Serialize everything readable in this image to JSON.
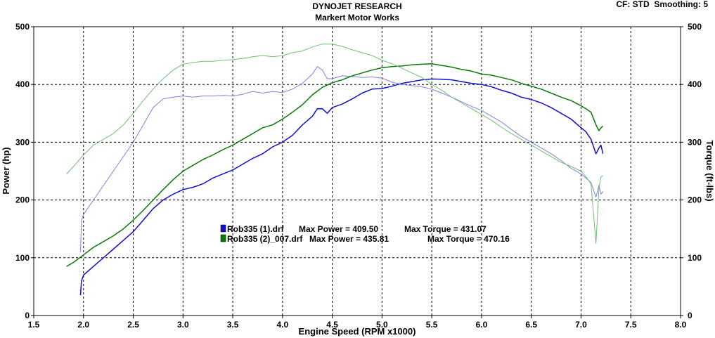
{
  "header": {
    "title": "DYNOJET RESEARCH",
    "subtitle": "Markert Motor Works",
    "settings": "CF: STD  Smoothing: 5"
  },
  "chart_data": {
    "type": "line",
    "title": "DYNOJET RESEARCH",
    "subtitle": "Markert Motor Works",
    "xlabel": "Engine Speed (RPM x1000)",
    "ylabel_left": "Power (hp)",
    "ylabel_right": "Torque (ft-lbs)",
    "xlim": [
      1.5,
      8.0
    ],
    "ylim_left": [
      0,
      500
    ],
    "ylim_right": [
      0,
      500
    ],
    "grid": true,
    "legend_position": "center-left",
    "x_ticks": [
      "1.5",
      "2.0",
      "2.5",
      "3.0",
      "3.5",
      "4.0",
      "4.5",
      "5.0",
      "5.5",
      "6.0",
      "6.5",
      "7.0",
      "7.5",
      "8.0"
    ],
    "y_ticks_left": [
      "0",
      "100",
      "200",
      "300",
      "400",
      "500"
    ],
    "y_ticks_right": [
      "0",
      "100",
      "200",
      "300",
      "400",
      "500"
    ],
    "legend": [
      {
        "file": "Rob335 (1).drf",
        "max_power": "Max Power = 409.50",
        "max_torque": "Max Torque = 431.07",
        "color": "#1010cc"
      },
      {
        "file": "Rob335 (2)_007.drf",
        "max_power": "Max Power = 435.81",
        "max_torque": "Max Torque = 470.16",
        "color": "#0a7a0a"
      }
    ],
    "series": [
      {
        "run": 1,
        "measure": "power",
        "color": "#1010cc",
        "points": [
          [
            1.97,
            35
          ],
          [
            1.98,
            60
          ],
          [
            2.0,
            70
          ],
          [
            2.1,
            85
          ],
          [
            2.2,
            100
          ],
          [
            2.3,
            115
          ],
          [
            2.4,
            130
          ],
          [
            2.5,
            145
          ],
          [
            2.6,
            165
          ],
          [
            2.7,
            185
          ],
          [
            2.8,
            200
          ],
          [
            2.9,
            210
          ],
          [
            3.0,
            218
          ],
          [
            3.1,
            222
          ],
          [
            3.2,
            228
          ],
          [
            3.3,
            238
          ],
          [
            3.4,
            245
          ],
          [
            3.5,
            252
          ],
          [
            3.6,
            262
          ],
          [
            3.7,
            272
          ],
          [
            3.8,
            280
          ],
          [
            3.9,
            292
          ],
          [
            4.0,
            300
          ],
          [
            4.1,
            312
          ],
          [
            4.2,
            330
          ],
          [
            4.3,
            345
          ],
          [
            4.35,
            358
          ],
          [
            4.4,
            358
          ],
          [
            4.45,
            350
          ],
          [
            4.5,
            360
          ],
          [
            4.6,
            366
          ],
          [
            4.7,
            375
          ],
          [
            4.8,
            385
          ],
          [
            4.9,
            392
          ],
          [
            5.0,
            393
          ],
          [
            5.1,
            397
          ],
          [
            5.2,
            402
          ],
          [
            5.3,
            405
          ],
          [
            5.4,
            408
          ],
          [
            5.5,
            409.5
          ],
          [
            5.6,
            409
          ],
          [
            5.7,
            408
          ],
          [
            5.8,
            405
          ],
          [
            5.9,
            402
          ],
          [
            6.0,
            400
          ],
          [
            6.1,
            396
          ],
          [
            6.2,
            390
          ],
          [
            6.3,
            385
          ],
          [
            6.4,
            378
          ],
          [
            6.5,
            374
          ],
          [
            6.6,
            368
          ],
          [
            6.7,
            360
          ],
          [
            6.8,
            350
          ],
          [
            6.9,
            340
          ],
          [
            7.0,
            325
          ],
          [
            7.05,
            318
          ],
          [
            7.1,
            305
          ],
          [
            7.15,
            280
          ],
          [
            7.18,
            290
          ],
          [
            7.2,
            295
          ],
          [
            7.22,
            280
          ]
        ]
      },
      {
        "run": 1,
        "measure": "torque",
        "color": "#8080e0",
        "points": [
          [
            1.97,
            110
          ],
          [
            1.98,
            165
          ],
          [
            2.0,
            175
          ],
          [
            2.1,
            200
          ],
          [
            2.2,
            225
          ],
          [
            2.3,
            250
          ],
          [
            2.4,
            275
          ],
          [
            2.5,
            300
          ],
          [
            2.6,
            330
          ],
          [
            2.7,
            360
          ],
          [
            2.8,
            375
          ],
          [
            2.9,
            378
          ],
          [
            3.0,
            380
          ],
          [
            3.1,
            378
          ],
          [
            3.2,
            380
          ],
          [
            3.3,
            380
          ],
          [
            3.4,
            381
          ],
          [
            3.5,
            380
          ],
          [
            3.6,
            383
          ],
          [
            3.7,
            388
          ],
          [
            3.8,
            385
          ],
          [
            3.9,
            388
          ],
          [
            4.0,
            386
          ],
          [
            4.1,
            392
          ],
          [
            4.2,
            402
          ],
          [
            4.3,
            418
          ],
          [
            4.35,
            431
          ],
          [
            4.4,
            425
          ],
          [
            4.45,
            410
          ],
          [
            4.5,
            410
          ],
          [
            4.6,
            415
          ],
          [
            4.7,
            414
          ],
          [
            4.8,
            412
          ],
          [
            4.9,
            413
          ],
          [
            5.0,
            411
          ],
          [
            5.1,
            404
          ],
          [
            5.2,
            400
          ],
          [
            5.3,
            398
          ],
          [
            5.4,
            396
          ],
          [
            5.5,
            392
          ],
          [
            5.6,
            385
          ],
          [
            5.7,
            378
          ],
          [
            5.8,
            370
          ],
          [
            5.9,
            362
          ],
          [
            6.0,
            355
          ],
          [
            6.1,
            345
          ],
          [
            6.2,
            335
          ],
          [
            6.3,
            322
          ],
          [
            6.4,
            310
          ],
          [
            6.5,
            300
          ],
          [
            6.6,
            290
          ],
          [
            6.7,
            280
          ],
          [
            6.8,
            268
          ],
          [
            6.9,
            255
          ],
          [
            7.0,
            245
          ],
          [
            7.05,
            238
          ],
          [
            7.1,
            230
          ],
          [
            7.15,
            205
          ],
          [
            7.18,
            225
          ],
          [
            7.2,
            210
          ],
          [
            7.22,
            215
          ]
        ]
      },
      {
        "run": 2,
        "measure": "power",
        "color": "#0a7a0a",
        "points": [
          [
            1.83,
            85
          ],
          [
            1.9,
            92
          ],
          [
            2.0,
            105
          ],
          [
            2.1,
            118
          ],
          [
            2.2,
            128
          ],
          [
            2.3,
            138
          ],
          [
            2.4,
            150
          ],
          [
            2.5,
            165
          ],
          [
            2.6,
            182
          ],
          [
            2.7,
            200
          ],
          [
            2.8,
            218
          ],
          [
            2.9,
            235
          ],
          [
            3.0,
            250
          ],
          [
            3.1,
            260
          ],
          [
            3.2,
            270
          ],
          [
            3.3,
            278
          ],
          [
            3.4,
            287
          ],
          [
            3.5,
            295
          ],
          [
            3.6,
            305
          ],
          [
            3.7,
            315
          ],
          [
            3.8,
            325
          ],
          [
            3.9,
            330
          ],
          [
            4.0,
            340
          ],
          [
            4.1,
            352
          ],
          [
            4.2,
            365
          ],
          [
            4.3,
            382
          ],
          [
            4.4,
            395
          ],
          [
            4.5,
            403
          ],
          [
            4.6,
            408
          ],
          [
            4.7,
            415
          ],
          [
            4.8,
            420
          ],
          [
            4.9,
            425
          ],
          [
            5.0,
            429
          ],
          [
            5.1,
            431
          ],
          [
            5.2,
            432
          ],
          [
            5.3,
            434
          ],
          [
            5.4,
            435
          ],
          [
            5.5,
            435.8
          ],
          [
            5.6,
            433
          ],
          [
            5.7,
            430
          ],
          [
            5.8,
            426
          ],
          [
            5.9,
            423
          ],
          [
            6.0,
            418
          ],
          [
            6.1,
            416
          ],
          [
            6.2,
            412
          ],
          [
            6.3,
            408
          ],
          [
            6.4,
            402
          ],
          [
            6.5,
            397
          ],
          [
            6.6,
            392
          ],
          [
            6.7,
            385
          ],
          [
            6.8,
            378
          ],
          [
            6.9,
            372
          ],
          [
            7.0,
            363
          ],
          [
            7.05,
            358
          ],
          [
            7.1,
            352
          ],
          [
            7.15,
            330
          ],
          [
            7.18,
            320
          ],
          [
            7.2,
            325
          ],
          [
            7.22,
            328
          ]
        ]
      },
      {
        "run": 2,
        "measure": "torque",
        "color": "#70c070",
        "points": [
          [
            1.83,
            245
          ],
          [
            1.9,
            258
          ],
          [
            2.0,
            278
          ],
          [
            2.1,
            295
          ],
          [
            2.2,
            305
          ],
          [
            2.3,
            315
          ],
          [
            2.4,
            330
          ],
          [
            2.5,
            350
          ],
          [
            2.6,
            372
          ],
          [
            2.7,
            392
          ],
          [
            2.8,
            410
          ],
          [
            2.9,
            425
          ],
          [
            3.0,
            435
          ],
          [
            3.1,
            438
          ],
          [
            3.2,
            440
          ],
          [
            3.3,
            440
          ],
          [
            3.4,
            442
          ],
          [
            3.5,
            443
          ],
          [
            3.6,
            445
          ],
          [
            3.7,
            448
          ],
          [
            3.8,
            450
          ],
          [
            3.9,
            448
          ],
          [
            4.0,
            450
          ],
          [
            4.1,
            455
          ],
          [
            4.2,
            458
          ],
          [
            4.3,
            465
          ],
          [
            4.4,
            470
          ],
          [
            4.5,
            470
          ],
          [
            4.6,
            466
          ],
          [
            4.7,
            460
          ],
          [
            4.8,
            455
          ],
          [
            4.9,
            450
          ],
          [
            5.0,
            442
          ],
          [
            5.1,
            436
          ],
          [
            5.2,
            428
          ],
          [
            5.3,
            420
          ],
          [
            5.4,
            412
          ],
          [
            5.5,
            400
          ],
          [
            5.6,
            390
          ],
          [
            5.7,
            378
          ],
          [
            5.8,
            368
          ],
          [
            5.9,
            358
          ],
          [
            6.0,
            348
          ],
          [
            6.1,
            338
          ],
          [
            6.2,
            326
          ],
          [
            6.3,
            315
          ],
          [
            6.4,
            305
          ],
          [
            6.5,
            295
          ],
          [
            6.6,
            285
          ],
          [
            6.7,
            275
          ],
          [
            6.8,
            265
          ],
          [
            6.9,
            258
          ],
          [
            7.0,
            250
          ],
          [
            7.05,
            240
          ],
          [
            7.1,
            228
          ],
          [
            7.15,
            125
          ],
          [
            7.18,
            220
          ],
          [
            7.2,
            240
          ],
          [
            7.22,
            242
          ]
        ]
      }
    ]
  }
}
